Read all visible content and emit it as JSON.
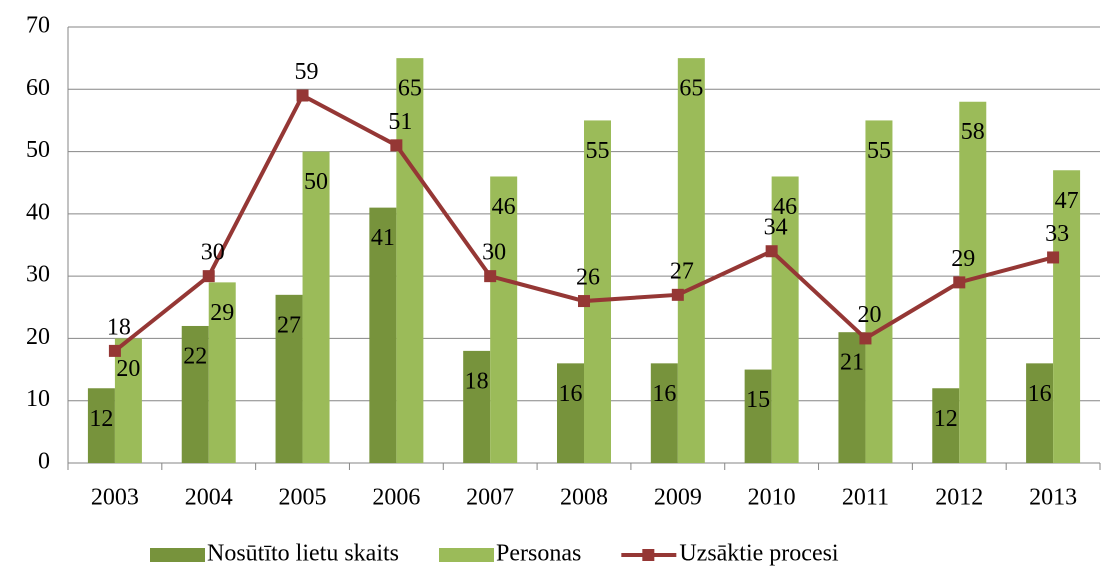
{
  "chart_data": {
    "type": "bar",
    "categories": [
      "2003",
      "2004",
      "2005",
      "2006",
      "2007",
      "2008",
      "2009",
      "2010",
      "2011",
      "2012",
      "2013"
    ],
    "series": [
      {
        "name": "Nosūtīto lietu skaits",
        "color": "#77933c",
        "type": "bar",
        "values": [
          12,
          22,
          27,
          41,
          18,
          16,
          16,
          15,
          21,
          12,
          16
        ]
      },
      {
        "name": "Personas",
        "color": "#9bbb59",
        "type": "bar",
        "values": [
          20,
          29,
          50,
          65,
          46,
          55,
          65,
          46,
          55,
          58,
          47
        ]
      },
      {
        "name": "Uzsāktie procesi",
        "color": "#953735",
        "type": "line",
        "values": [
          18,
          30,
          59,
          51,
          30,
          26,
          27,
          34,
          20,
          29,
          33
        ]
      }
    ],
    "ylim": [
      0,
      70
    ],
    "yticks": [
      0,
      10,
      20,
      30,
      40,
      50,
      60,
      70
    ],
    "grid": true,
    "legend": "bottom"
  }
}
